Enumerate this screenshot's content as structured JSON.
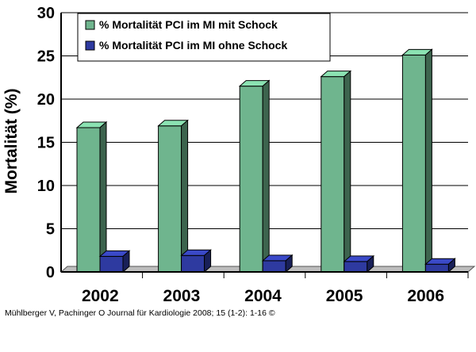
{
  "chart_data": {
    "type": "bar",
    "categories": [
      "2002",
      "2003",
      "2004",
      "2005",
      "2006"
    ],
    "series": [
      {
        "name": "% Mortalität PCI im MI mit Schock",
        "values": [
          16.7,
          16.9,
          21.5,
          22.6,
          25.1
        ],
        "color": "#6fb58e"
      },
      {
        "name": "% Mortalität PCI im MI ohne Schock",
        "values": [
          1.8,
          1.9,
          1.3,
          1.2,
          0.9
        ],
        "color": "#2e3aa0"
      }
    ],
    "xlabel": "",
    "ylabel": "Mortalität (%)",
    "ylim": [
      0,
      30
    ],
    "yticks": [
      "0",
      "5",
      "10",
      "15",
      "20",
      "25",
      "30"
    ],
    "grid": true,
    "legend": "top-left",
    "chart_type_style": "3d-columns"
  },
  "caption": "Mühlberger V, Pachinger O Journal für Kardiologie 2008; 15 (1-2): 1-16 ©"
}
